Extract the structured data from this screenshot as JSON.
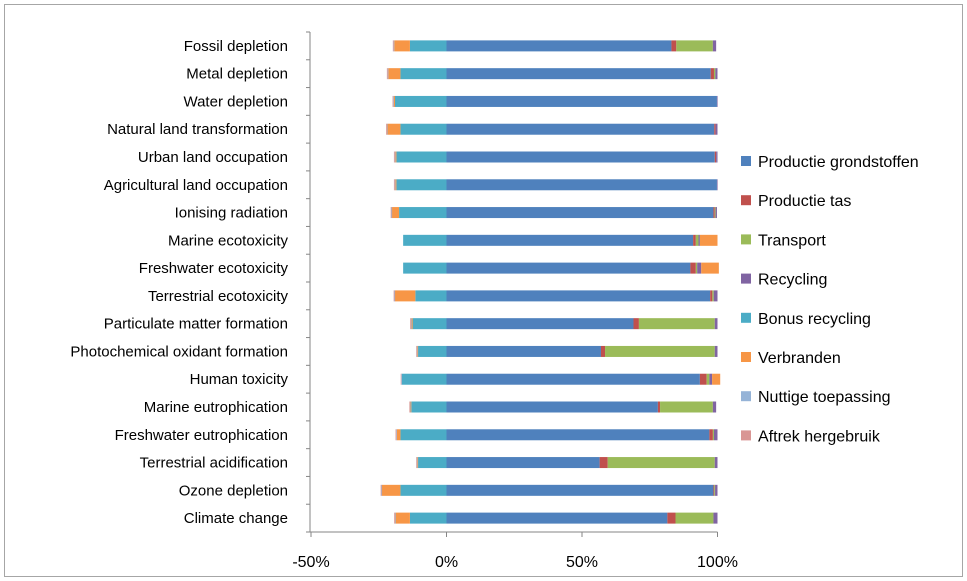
{
  "chart_data": {
    "type": "bar",
    "orientation": "horizontal",
    "stacked": true,
    "title": "",
    "xlabel": "",
    "ylabel": "",
    "xlim": [
      -50,
      100
    ],
    "x_ticks": [
      "-50%",
      "0%",
      "50%",
      "100%"
    ],
    "x_tick_values": [
      -50,
      0,
      50,
      100
    ],
    "grid": false,
    "legend_position": "right",
    "categories": [
      "Fossil depletion",
      "Metal depletion",
      "Water depletion",
      "Natural land transformation",
      "Urban land occupation",
      "Agricultural land occupation",
      "Ionising radiation",
      "Marine ecotoxicity",
      "Freshwater ecotoxicity",
      "Terrestrial ecotoxicity",
      "Particulate matter formation",
      "Photochemical oxidant formation",
      "Human toxicity",
      "Marine eutrophication",
      "Freshwater eutrophication",
      "Terrestrial acidification",
      "Ozone depletion",
      "Climate change"
    ],
    "series": [
      {
        "name": "Productie grondstoffen",
        "color": "#4f81bd",
        "values": [
          83,
          97.5,
          99.8,
          98.8,
          99,
          99.8,
          98.5,
          91,
          90,
          97.3,
          69,
          57,
          93.5,
          78,
          97,
          56.5,
          98.5,
          81.5
        ]
      },
      {
        "name": "Productie tas",
        "color": "#c0504d",
        "values": [
          1.8,
          1.2,
          0,
          0.5,
          0.5,
          0,
          0.5,
          1,
          2,
          0.8,
          2,
          1.5,
          2.5,
          0.8,
          1.3,
          3,
          0.3,
          3
        ]
      },
      {
        "name": "Transport",
        "color": "#9bbb59",
        "values": [
          13.5,
          0.5,
          0,
          0,
          0,
          0,
          0.3,
          1,
          0.5,
          0.5,
          28,
          40.5,
          1,
          19.5,
          0.4,
          39.5,
          0.3,
          14
        ]
      },
      {
        "name": "Recycling",
        "color": "#8064a2",
        "values": [
          1.2,
          0.8,
          0.2,
          0.7,
          0.5,
          0.2,
          0.5,
          0.5,
          1.5,
          1.4,
          1,
          1,
          1,
          1.2,
          1.3,
          1,
          0.9,
          1.5
        ]
      },
      {
        "name": "Bonus recycling",
        "color": "#4bacc6",
        "values": [
          -13.5,
          -17,
          -19,
          -17,
          -18.5,
          -18.5,
          -17.5,
          -16,
          -16,
          -11.5,
          -12.5,
          -10.5,
          -16.5,
          -13,
          -17,
          -10.5,
          -17,
          -13.5
        ]
      },
      {
        "name": "Verbranden",
        "color": "#f79646",
        "values": [
          -5.8,
          -4.5,
          -0.4,
          -4.8,
          -0.4,
          -0.4,
          -2.6,
          6.5,
          6.5,
          -7.5,
          -0.4,
          -0.3,
          3,
          -0.3,
          -1.3,
          -0.3,
          -6.8,
          -5.3
        ]
      },
      {
        "name": "Nuttige toepassing",
        "color": "#95b3d7",
        "values": [
          -0.2,
          -0.2,
          -0.2,
          -0.2,
          -0.2,
          -0.2,
          -0.2,
          0,
          0,
          -0.2,
          -0.2,
          -0.2,
          -0.2,
          -0.2,
          -0.2,
          -0.2,
          -0.2,
          -0.2
        ]
      },
      {
        "name": "Aftrek hergebruik",
        "color": "#d99694",
        "values": [
          -0.3,
          -0.3,
          -0.3,
          -0.3,
          -0.3,
          -0.3,
          -0.3,
          0,
          0,
          -0.3,
          -0.3,
          -0.2,
          -0.2,
          -0.2,
          -0.3,
          -0.2,
          -0.3,
          -0.3
        ]
      }
    ]
  },
  "colors": {
    "axis": "#868686",
    "frame": "#a6a6a6"
  }
}
